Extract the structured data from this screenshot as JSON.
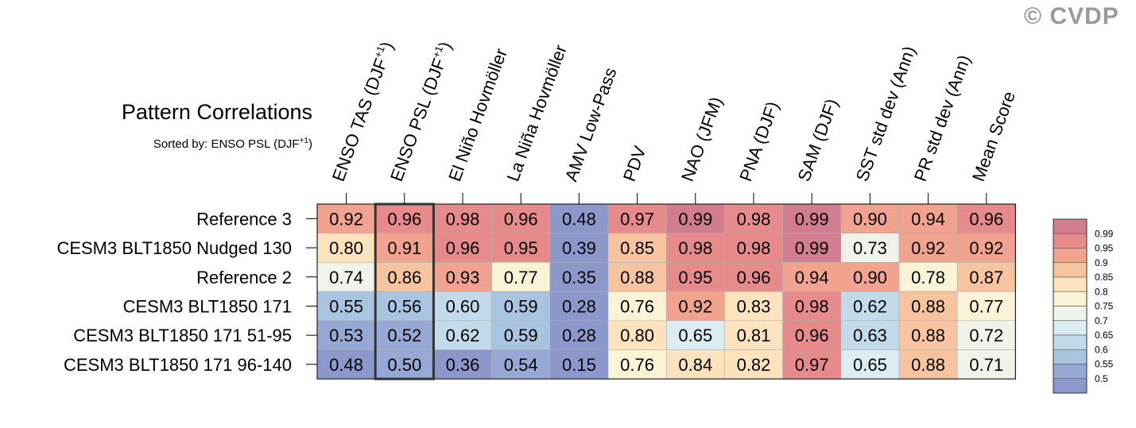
{
  "watermark": "© CVDP",
  "title": "Pattern Correlations",
  "subtitle_prefix": "Sorted by: ENSO PSL (DJF",
  "subtitle_sup": "+1",
  "subtitle_suffix": ")",
  "chart_data": {
    "type": "heatmap",
    "title": "Pattern Correlations",
    "subtitle": "Sorted by: ENSO PSL (DJF+1)",
    "columns": [
      {
        "label": "ENSO TAS (DJF",
        "sup": "+1",
        "suffix": ")"
      },
      {
        "label": "ENSO PSL (DJF",
        "sup": "+1",
        "suffix": ")"
      },
      {
        "label": "El Niño Hovmöller"
      },
      {
        "label": "La Niña Hovmöller"
      },
      {
        "label": "AMV Low-Pass"
      },
      {
        "label": "PDV"
      },
      {
        "label": "NAO (JFM)"
      },
      {
        "label": "PNA (DJF)"
      },
      {
        "label": "SAM (DJF)"
      },
      {
        "label": "SST std dev (Ann)"
      },
      {
        "label": "PR std dev (Ann)"
      },
      {
        "label": "Mean Score"
      }
    ],
    "rows": [
      {
        "label": "Reference 3",
        "values": [
          0.92,
          0.96,
          0.98,
          0.96,
          0.48,
          0.97,
          0.99,
          0.98,
          0.99,
          0.9,
          0.94,
          0.96
        ]
      },
      {
        "label": "CESM3 BLT1850 Nudged 130",
        "values": [
          0.8,
          0.91,
          0.96,
          0.95,
          0.39,
          0.85,
          0.98,
          0.98,
          0.99,
          0.73,
          0.92,
          0.92
        ]
      },
      {
        "label": "Reference 2",
        "values": [
          0.74,
          0.86,
          0.93,
          0.77,
          0.35,
          0.88,
          0.95,
          0.96,
          0.94,
          0.9,
          0.78,
          0.87
        ]
      },
      {
        "label": "CESM3 BLT1850 171",
        "values": [
          0.55,
          0.56,
          0.6,
          0.59,
          0.28,
          0.76,
          0.92,
          0.83,
          0.98,
          0.62,
          0.88,
          0.77
        ]
      },
      {
        "label": "CESM3 BLT1850 171 51-95",
        "values": [
          0.53,
          0.52,
          0.62,
          0.59,
          0.28,
          0.8,
          0.65,
          0.81,
          0.96,
          0.63,
          0.88,
          0.72
        ]
      },
      {
        "label": "CESM3 BLT1850 171 96-140",
        "values": [
          0.48,
          0.5,
          0.36,
          0.54,
          0.15,
          0.76,
          0.84,
          0.82,
          0.97,
          0.65,
          0.88,
          0.71
        ]
      }
    ],
    "highlighted_column": "ENSO PSL (DJF+1)",
    "value_format": "2 decimals",
    "legend": {
      "position": "right",
      "boundaries": [
        "0.99",
        "0.95",
        "0.9",
        "0.85",
        "0.8",
        "0.75",
        "0.7",
        "0.65",
        "0.6",
        "0.55",
        "0.5"
      ],
      "colors": [
        "#d27d8f",
        "#e78a8c",
        "#f2a38f",
        "#f8c4a0",
        "#fde3bd",
        "#fbf3d6",
        "#eff3ea",
        "#dcecf3",
        "#c1dbeb",
        "#a9c4e0",
        "#96a8d4",
        "#8c98cc"
      ]
    }
  }
}
